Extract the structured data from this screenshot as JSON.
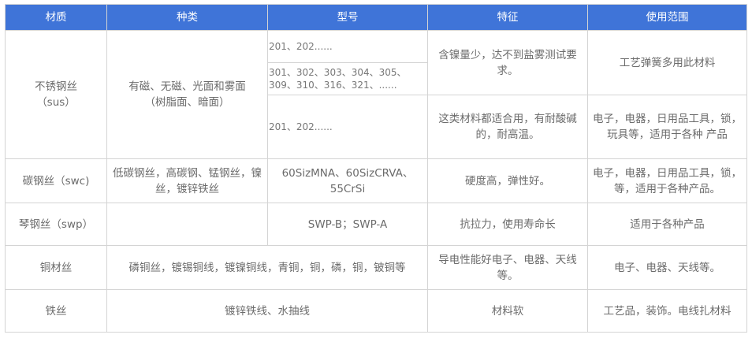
{
  "colors": {
    "header_bg": "#3f74d8",
    "header_text": "#ffffff",
    "cell_text": "#6b6b6b",
    "border": "#d4d4d4"
  },
  "headers": [
    "材质",
    "种类",
    "型号",
    "特征",
    "使用范围"
  ],
  "rows": {
    "sus": {
      "material": "不锈钢丝\n（sus）",
      "material_line1": "不锈钢丝",
      "material_line2": "（sus）",
      "kind_line1": "有磁、无磁、光面和雾面",
      "kind_line2": "（树脂面、暗面）",
      "models": [
        "201、202......",
        "301、302、303、304、305、309、310、316、321、......",
        "201、202......"
      ],
      "features": [
        "含镍量少，达不到盐雾测试要求。",
        "这类材料都适合用，有耐酸碱的，耐高温。"
      ],
      "usage": [
        "工艺弹簧多用此材料",
        "电子，电器，日用品工具，锁，玩具等，适用于各种 产品"
      ]
    },
    "swc": {
      "material": "碳钢丝（swc)",
      "kind": "低碳钢丝，高碳钢、锰钢丝，镍丝，镀锌铁丝",
      "model": "60SizMNA、60SizCRVA、55CrSi",
      "feature": "硬度高，弹性好。",
      "usage": "电子，电器，日用品工具，锁，等，适用于各种产品。"
    },
    "swp": {
      "material": "琴钢丝（swp）",
      "kind": "",
      "model": "SWP-B；SWP-A",
      "feature": "抗拉力，使用寿命长",
      "usage": "适用于各种产品"
    },
    "copper": {
      "material": "铜材丝",
      "kind_model": "磷铜丝，镀锡铜线，镀镍铜线，青铜，铜，磷，铜，铍铜等",
      "feature": "导电性能好电子、电器、天线等。",
      "usage": "电子、电器、天线等。"
    },
    "iron": {
      "material": "铁丝",
      "kind_model": "镀锌铁线、水抽线",
      "feature": "材料软",
      "usage": "工艺品，装饰。电线扎材料"
    }
  }
}
